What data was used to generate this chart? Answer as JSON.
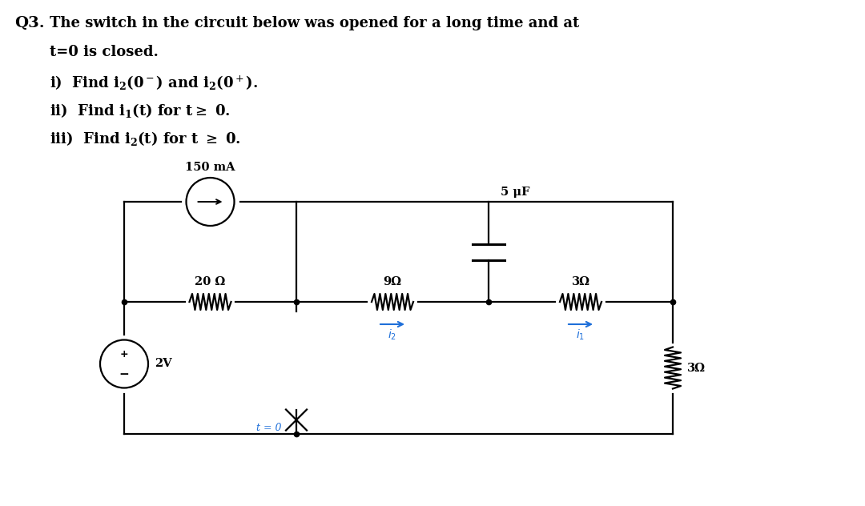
{
  "bg_color": "#ffffff",
  "text_color": "#000000",
  "circuit_color": "#000000",
  "blue_color": "#1E6FD9",
  "label_150mA": "150 mA",
  "label_5uF": "5 μF",
  "label_20R": "20 Ω",
  "label_9R": "9Ω",
  "label_3R_h": "3Ω",
  "label_3R_v": "3Ω",
  "label_2V": "2V",
  "label_t0": "t = 0",
  "font_size_title": 14,
  "font_size_body": 13,
  "font_size_circuit": 10.5
}
